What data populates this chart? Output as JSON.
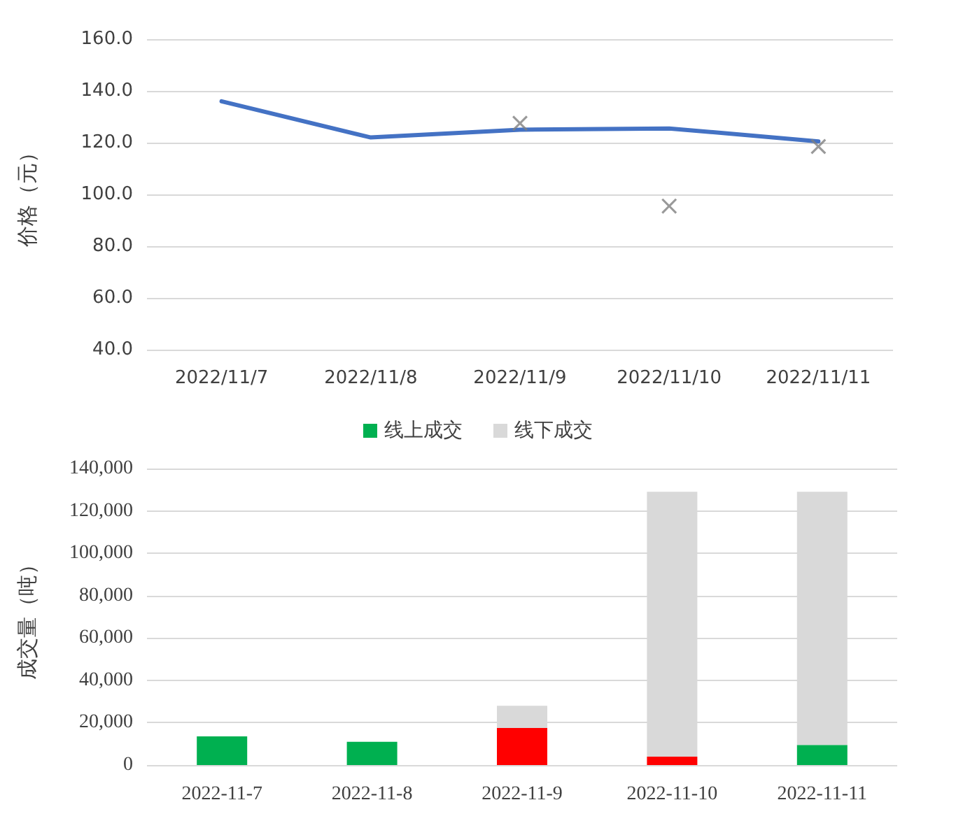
{
  "chart_data": [
    {
      "type": "line",
      "ylabel": "价格（元）",
      "categories": [
        "2022/11/7",
        "2022/11/8",
        "2022/11/9",
        "2022/11/10",
        "2022/11/11"
      ],
      "series": [
        {
          "color": "#4472c4",
          "marker": "none",
          "values": [
            136,
            122,
            125,
            125.5,
            120.5
          ]
        },
        {
          "type": "scatter",
          "color": "#7f7f7f",
          "marker": "cross",
          "values": [
            null,
            null,
            127.5,
            95.5,
            118.5
          ]
        }
      ],
      "ylim": [
        40,
        160
      ],
      "yticks": [
        {
          "value": 40,
          "label": "40.0"
        },
        {
          "value": 60,
          "label": "60.0"
        },
        {
          "value": 80,
          "label": "80.0"
        },
        {
          "value": 100,
          "label": "100.0"
        },
        {
          "value": 120,
          "label": "120.0"
        },
        {
          "value": 140,
          "label": "140.0"
        },
        {
          "value": 160,
          "label": "160.0"
        }
      ],
      "grid": "y"
    },
    {
      "type": "bar",
      "stacked": true,
      "ylabel": "成交量（吨）",
      "categories": [
        "2022-11-7",
        "2022-11-8",
        "2022-11-9",
        "2022-11-10",
        "2022-11-11"
      ],
      "series": [
        {
          "name": "线上成交",
          "color": "#00b050",
          "colors": [
            "#00b050",
            "#00b050",
            "#ff0000",
            "#ff0000",
            "#00b050"
          ],
          "values": [
            13500,
            11000,
            17500,
            4000,
            9500
          ]
        },
        {
          "name": "线下成交",
          "color": "#d9d9d9",
          "values": [
            null,
            null,
            10500,
            125000,
            119500
          ]
        }
      ],
      "ylim": [
        0,
        140000
      ],
      "yticks": [
        0,
        {
          "value": 20000,
          "label": "20,000"
        },
        {
          "value": 40000,
          "label": "40,000"
        },
        {
          "value": 60000,
          "label": "60,000"
        },
        {
          "value": 80000,
          "label": "80,000"
        },
        {
          "value": 100000,
          "label": "100,000"
        },
        {
          "value": 120000,
          "label": "120,000"
        },
        {
          "value": 140000,
          "label": "140,000"
        }
      ],
      "grid": "y",
      "legend": "top"
    }
  ]
}
